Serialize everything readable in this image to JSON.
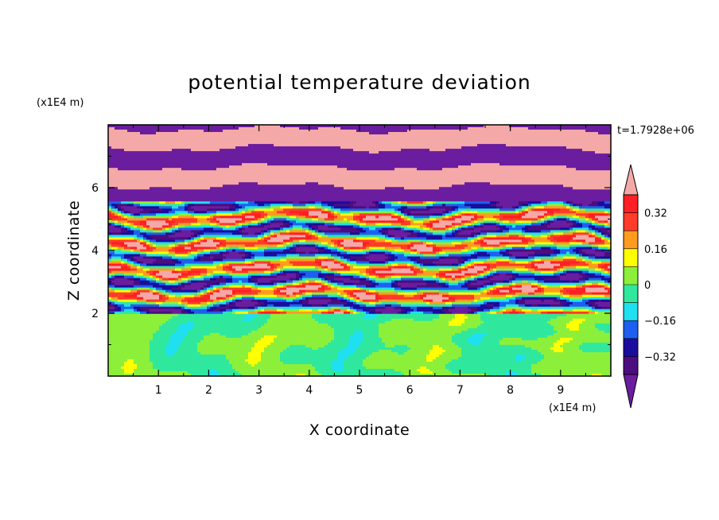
{
  "chart_data": {
    "type": "heatmap",
    "title": "potential temperature deviation",
    "xlabel": "X coordinate",
    "ylabel": "Z coordinate",
    "x_unit": "(x1E4 m)",
    "y_unit": "(x1E4 m)",
    "time_label": "t=1.7928e+06",
    "xlim": [
      0,
      10
    ],
    "ylim": [
      0,
      8
    ],
    "x_ticks": [
      1,
      2,
      3,
      4,
      5,
      6,
      7,
      8,
      9
    ],
    "y_ticks": [
      2,
      4,
      6
    ],
    "x_tick_labels": [
      "1",
      "2",
      "3",
      "4",
      "5",
      "6",
      "7",
      "8",
      "9"
    ],
    "y_tick_labels": [
      "2",
      "4",
      "6"
    ],
    "colorbar": {
      "levels": [
        -0.4,
        -0.32,
        -0.24,
        -0.16,
        -0.08,
        0,
        0.08,
        0.16,
        0.24,
        0.32,
        0.4
      ],
      "colors": [
        "#4c0d7e",
        "#1a0c9c",
        "#1f5ff0",
        "#1fe0f0",
        "#2fe89e",
        "#8cf03a",
        "#ffff00",
        "#ff9c1f",
        "#ff3b2a",
        "#ff1f25"
      ],
      "under_color": "#6a1d9e",
      "over_color": "#f5a8a8",
      "tick_values": [
        0.32,
        0.16,
        0,
        -0.16,
        -0.32
      ],
      "tick_labels": [
        "0.32",
        "0.16",
        "0",
        "−0.16",
        "−0.32"
      ]
    },
    "regions": [
      {
        "z_range": [
          0,
          2
        ],
        "description_value_range": [
          -0.08,
          0.08
        ]
      },
      {
        "z_range": [
          2,
          5.5
        ],
        "description_value_range": [
          -0.4,
          0.4
        ]
      },
      {
        "z_range": [
          5.5,
          8
        ],
        "description_value_range": [
          "under",
          "over"
        ]
      }
    ]
  }
}
